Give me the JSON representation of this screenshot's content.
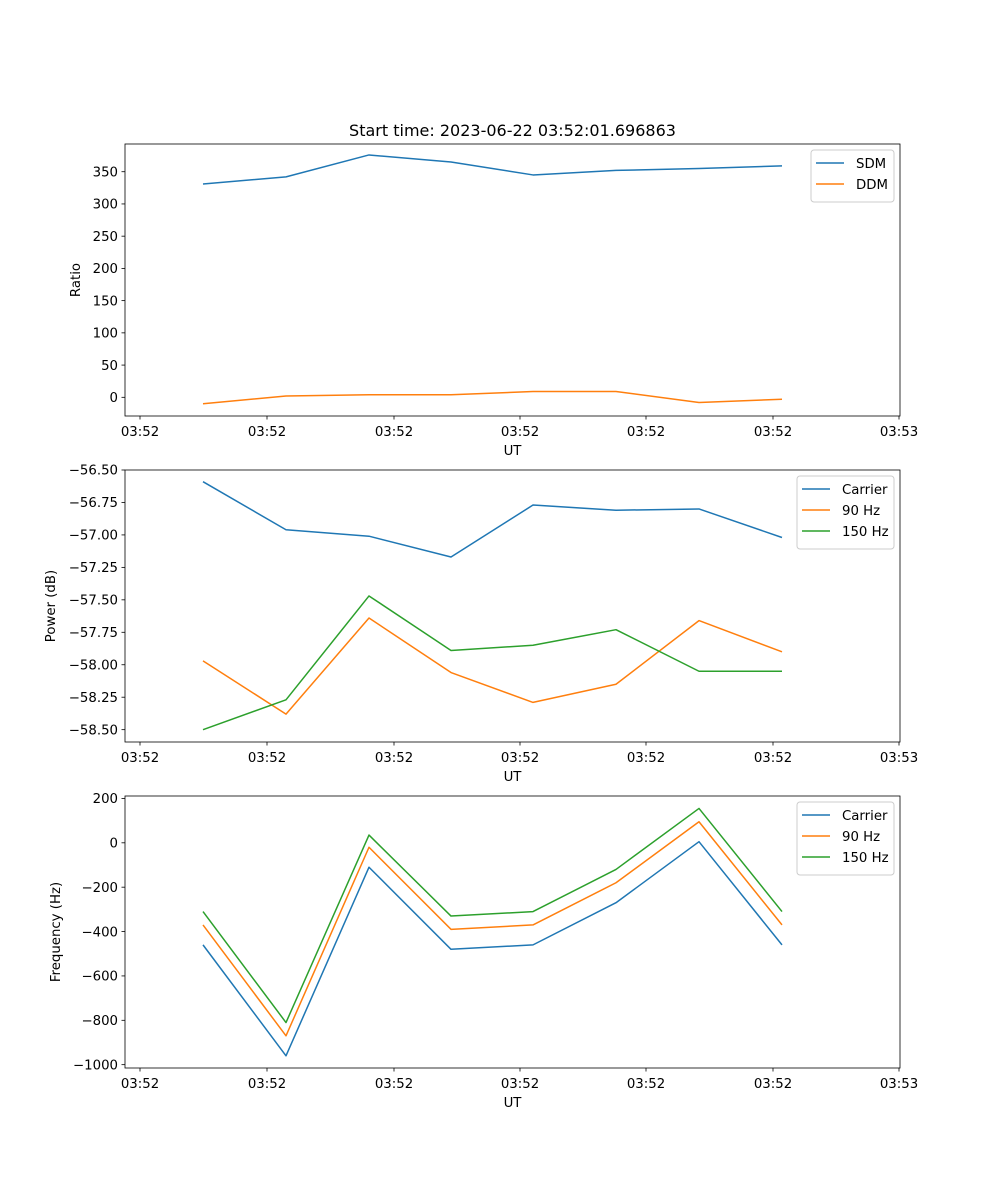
{
  "title": "Start time: 2023-06-22 03:52:01.696863",
  "chart_data": [
    {
      "type": "line",
      "xlabel": "UT",
      "ylabel": "Ratio",
      "x_tick_labels": [
        "03:52",
        "03:52",
        "03:52",
        "03:52",
        "03:52",
        "03:52",
        "03:53"
      ],
      "y_ticks": [
        0,
        50,
        100,
        150,
        200,
        250,
        300,
        350
      ],
      "y_tick_labels": [
        "0",
        "50",
        "100",
        "150",
        "200",
        "250",
        "300",
        "350"
      ],
      "ylim": [
        -29,
        393
      ],
      "legend": "upper right",
      "series": [
        {
          "name": "SDM",
          "color": "#1f77b4",
          "values": [
            331,
            342,
            376,
            365,
            345,
            352,
            355,
            359
          ]
        },
        {
          "name": "DDM",
          "color": "#ff7f0e",
          "values": [
            -10,
            2,
            4,
            4,
            9,
            9,
            -8,
            -3
          ]
        }
      ]
    },
    {
      "type": "line",
      "xlabel": "UT",
      "ylabel": "Power (dB)",
      "x_tick_labels": [
        "03:52",
        "03:52",
        "03:52",
        "03:52",
        "03:52",
        "03:52",
        "03:53"
      ],
      "y_ticks": [
        -58.5,
        -58.25,
        -58.0,
        -57.75,
        -57.5,
        -57.25,
        -57.0,
        -56.75,
        -56.5
      ],
      "y_tick_labels": [
        "−58.50",
        "−58.25",
        "−58.00",
        "−57.75",
        "−57.50",
        "−57.25",
        "−57.00",
        "−56.75",
        "−56.50"
      ],
      "ylim": [
        -58.595,
        -56.5
      ],
      "legend": "upper right",
      "series": [
        {
          "name": "Carrier",
          "color": "#1f77b4",
          "values": [
            -56.59,
            -56.96,
            -57.01,
            -57.17,
            -56.77,
            -56.81,
            -56.8,
            -57.02
          ]
        },
        {
          "name": "90 Hz",
          "color": "#ff7f0e",
          "values": [
            -57.97,
            -58.38,
            -57.64,
            -58.06,
            -58.29,
            -58.15,
            -57.66,
            -57.9
          ]
        },
        {
          "name": "150 Hz",
          "color": "#2ca02c",
          "values": [
            -58.5,
            -58.27,
            -57.47,
            -57.89,
            -57.85,
            -57.73,
            -58.05,
            -58.05
          ]
        }
      ]
    },
    {
      "type": "line",
      "xlabel": "UT",
      "ylabel": "Frequency (Hz)",
      "x_tick_labels": [
        "03:52",
        "03:52",
        "03:52",
        "03:52",
        "03:52",
        "03:52",
        "03:53"
      ],
      "y_ticks": [
        -1000,
        -800,
        -600,
        -400,
        -200,
        0,
        200
      ],
      "y_tick_labels": [
        "−1000",
        "−800",
        "−600",
        "−400",
        "−200",
        "0",
        "200"
      ],
      "ylim": [
        -1015,
        211
      ],
      "legend": "upper right",
      "series": [
        {
          "name": "Carrier",
          "color": "#1f77b4",
          "values": [
            -460,
            -960,
            -110,
            -480,
            -460,
            -270,
            5,
            -460
          ]
        },
        {
          "name": "90 Hz",
          "color": "#ff7f0e",
          "values": [
            -370,
            -870,
            -20,
            -390,
            -370,
            -180,
            95,
            -370
          ]
        },
        {
          "name": "150 Hz",
          "color": "#2ca02c",
          "values": [
            -310,
            -810,
            35,
            -330,
            -310,
            -120,
            155,
            -310
          ]
        }
      ]
    }
  ]
}
